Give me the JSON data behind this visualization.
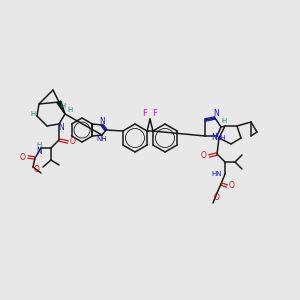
{
  "bg_color": "#e8e8e8",
  "colors": {
    "C": "#1a1a1a",
    "N": "#1515cc",
    "O": "#cc1515",
    "F": "#cc15cc",
    "H_stereo": "#008888",
    "bond": "#1a1a1a"
  },
  "figsize": [
    3.0,
    3.0
  ],
  "dpi": 100,
  "xlim": [
    0,
    300
  ],
  "ylim": [
    0,
    300
  ]
}
